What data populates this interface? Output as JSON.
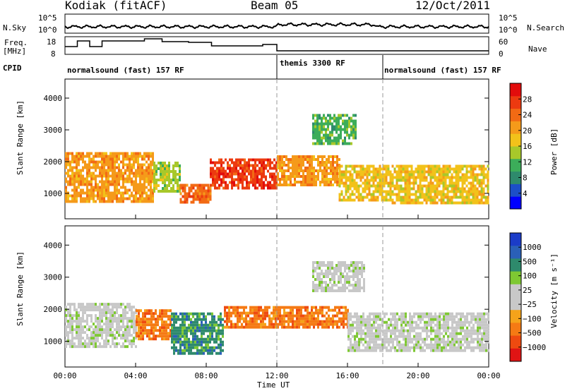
{
  "header": {
    "station": "Kodiak (fitACF)",
    "beam": "Beam 05",
    "date": "12/Oct/2011"
  },
  "panels": {
    "nsky_label": "N.Sky",
    "nsearch_label": "N.Search",
    "freq_label_1": "Freq.",
    "freq_label_2": "[MHz]",
    "nave_label": "Nave",
    "cpid_label": "CPID",
    "nsky_ticks": [
      "10^5",
      "10^0"
    ],
    "nsearch_ticks": [
      "10^5",
      "10^0"
    ],
    "freq_ticks": [
      "18",
      "8"
    ],
    "nave_ticks": [
      "60",
      "0"
    ]
  },
  "cpid_segments": [
    {
      "label": "normalsound (fast) 157 RF",
      "start_h": 0
    },
    {
      "label": "themis 3300 RF",
      "start_h": 12
    },
    {
      "label": "normalsound (fast) 157 RF",
      "start_h": 18
    }
  ],
  "colors": {
    "power_scale": [
      "#0000ff",
      "#1c4fc8",
      "#2e8a6c",
      "#3cad5a",
      "#a8c82a",
      "#f2c21a",
      "#f59a1a",
      "#f26a14",
      "#ec3a10",
      "#e20c0c"
    ],
    "velocity_scale": [
      "#1b3cc8",
      "#2a60b8",
      "#2e8a6c",
      "#7ec832",
      "#c8c8c8",
      "#c8c8c8",
      "#f5a31a",
      "#f57a14",
      "#ee4a10",
      "#e01414"
    ]
  },
  "chart_data": [
    {
      "type": "heatmap",
      "name": "power",
      "xlabel": "Time UT",
      "ylabel": "Slant Range [km]",
      "xlim": [
        0,
        24
      ],
      "ylim": [
        200,
        4600
      ],
      "x_ticks": [
        "00:00",
        "04:00",
        "08:00",
        "12:00",
        "16:00",
        "20:00",
        "00:00"
      ],
      "y_ticks": [
        1000,
        2000,
        3000,
        4000
      ],
      "colorbar_label": "Power [dB]",
      "colorbar_ticks": [
        4,
        8,
        12,
        16,
        20,
        24,
        28
      ],
      "colorbar_range": [
        0,
        32
      ],
      "regions": [
        {
          "x": [
            0.0,
            5.0
          ],
          "y": [
            700,
            2300
          ],
          "value": 22
        },
        {
          "x": [
            5.0,
            6.5
          ],
          "y": [
            1100,
            2000
          ],
          "value": 14
        },
        {
          "x": [
            6.5,
            8.2
          ],
          "y": [
            700,
            1300
          ],
          "value": 24
        },
        {
          "x": [
            8.2,
            12.0
          ],
          "y": [
            1200,
            2100
          ],
          "value": 27
        },
        {
          "x": [
            12.0,
            15.5
          ],
          "y": [
            1300,
            2200
          ],
          "value": 22
        },
        {
          "x": [
            14.0,
            16.5
          ],
          "y": [
            2600,
            3500
          ],
          "value": 12
        },
        {
          "x": [
            15.5,
            18.5
          ],
          "y": [
            800,
            1900
          ],
          "value": 16
        },
        {
          "x": [
            18.5,
            24.0
          ],
          "y": [
            700,
            1900
          ],
          "value": 18
        }
      ]
    },
    {
      "type": "heatmap",
      "name": "velocity",
      "xlabel": "Time UT",
      "ylabel": "Slant Range [km]",
      "xlim": [
        0,
        24
      ],
      "ylim": [
        200,
        4600
      ],
      "x_ticks": [
        "00:00",
        "04:00",
        "08:00",
        "12:00",
        "16:00",
        "20:00",
        "00:00"
      ],
      "y_ticks": [
        1000,
        2000,
        3000,
        4000
      ],
      "colorbar_label": "Velocity [m s⁻¹]",
      "colorbar_ticks": [
        "1000",
        "500",
        "100",
        "25",
        "−25",
        "−100",
        "−500",
        "−1000"
      ],
      "regions": [
        {
          "x": [
            0.0,
            4.0
          ],
          "y": [
            800,
            2200
          ],
          "value": 0
        },
        {
          "x": [
            4.0,
            6.0
          ],
          "y": [
            1100,
            2000
          ],
          "value": -300
        },
        {
          "x": [
            6.0,
            9.0
          ],
          "y": [
            600,
            1900
          ],
          "value": 150
        },
        {
          "x": [
            9.0,
            16.0
          ],
          "y": [
            1400,
            2100
          ],
          "value": -200
        },
        {
          "x": [
            14.0,
            17.0
          ],
          "y": [
            2600,
            3500
          ],
          "value": 0
        },
        {
          "x": [
            16.0,
            24.0
          ],
          "y": [
            700,
            1900
          ],
          "value": 0
        }
      ]
    }
  ]
}
